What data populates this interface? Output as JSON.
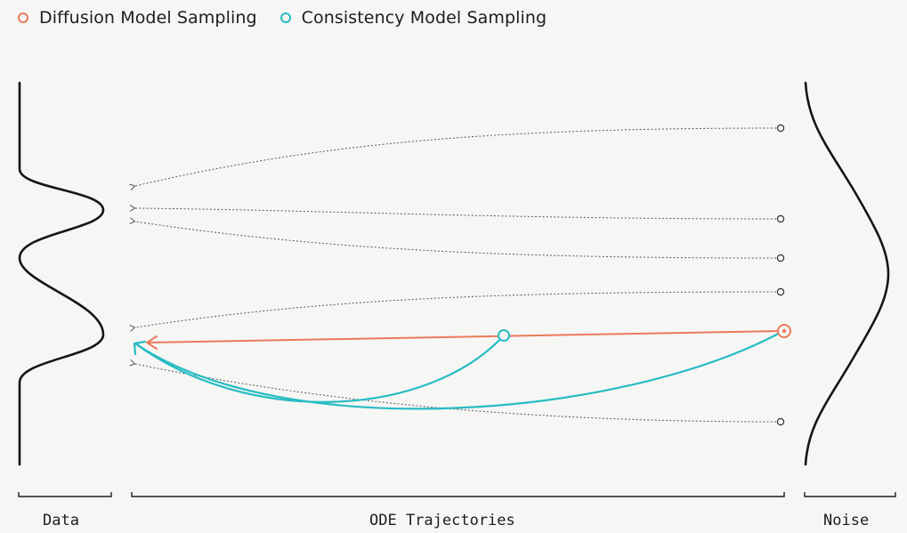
{
  "legend": [
    {
      "label": "Diffusion Model Sampling",
      "color": "#ea7a5a",
      "icon": "circle-outline-icon"
    },
    {
      "label": "Consistency Model Sampling",
      "color": "#26bcc3",
      "icon": "circle-outline-icon"
    }
  ],
  "sections": {
    "data": "Data",
    "ode": "ODE Trajectories",
    "noise": "Noise"
  },
  "colors": {
    "trajectory": "#555555",
    "diffusion": "#ea7a5a",
    "consistency": "#26bcc3",
    "distribution": "#151515"
  }
}
